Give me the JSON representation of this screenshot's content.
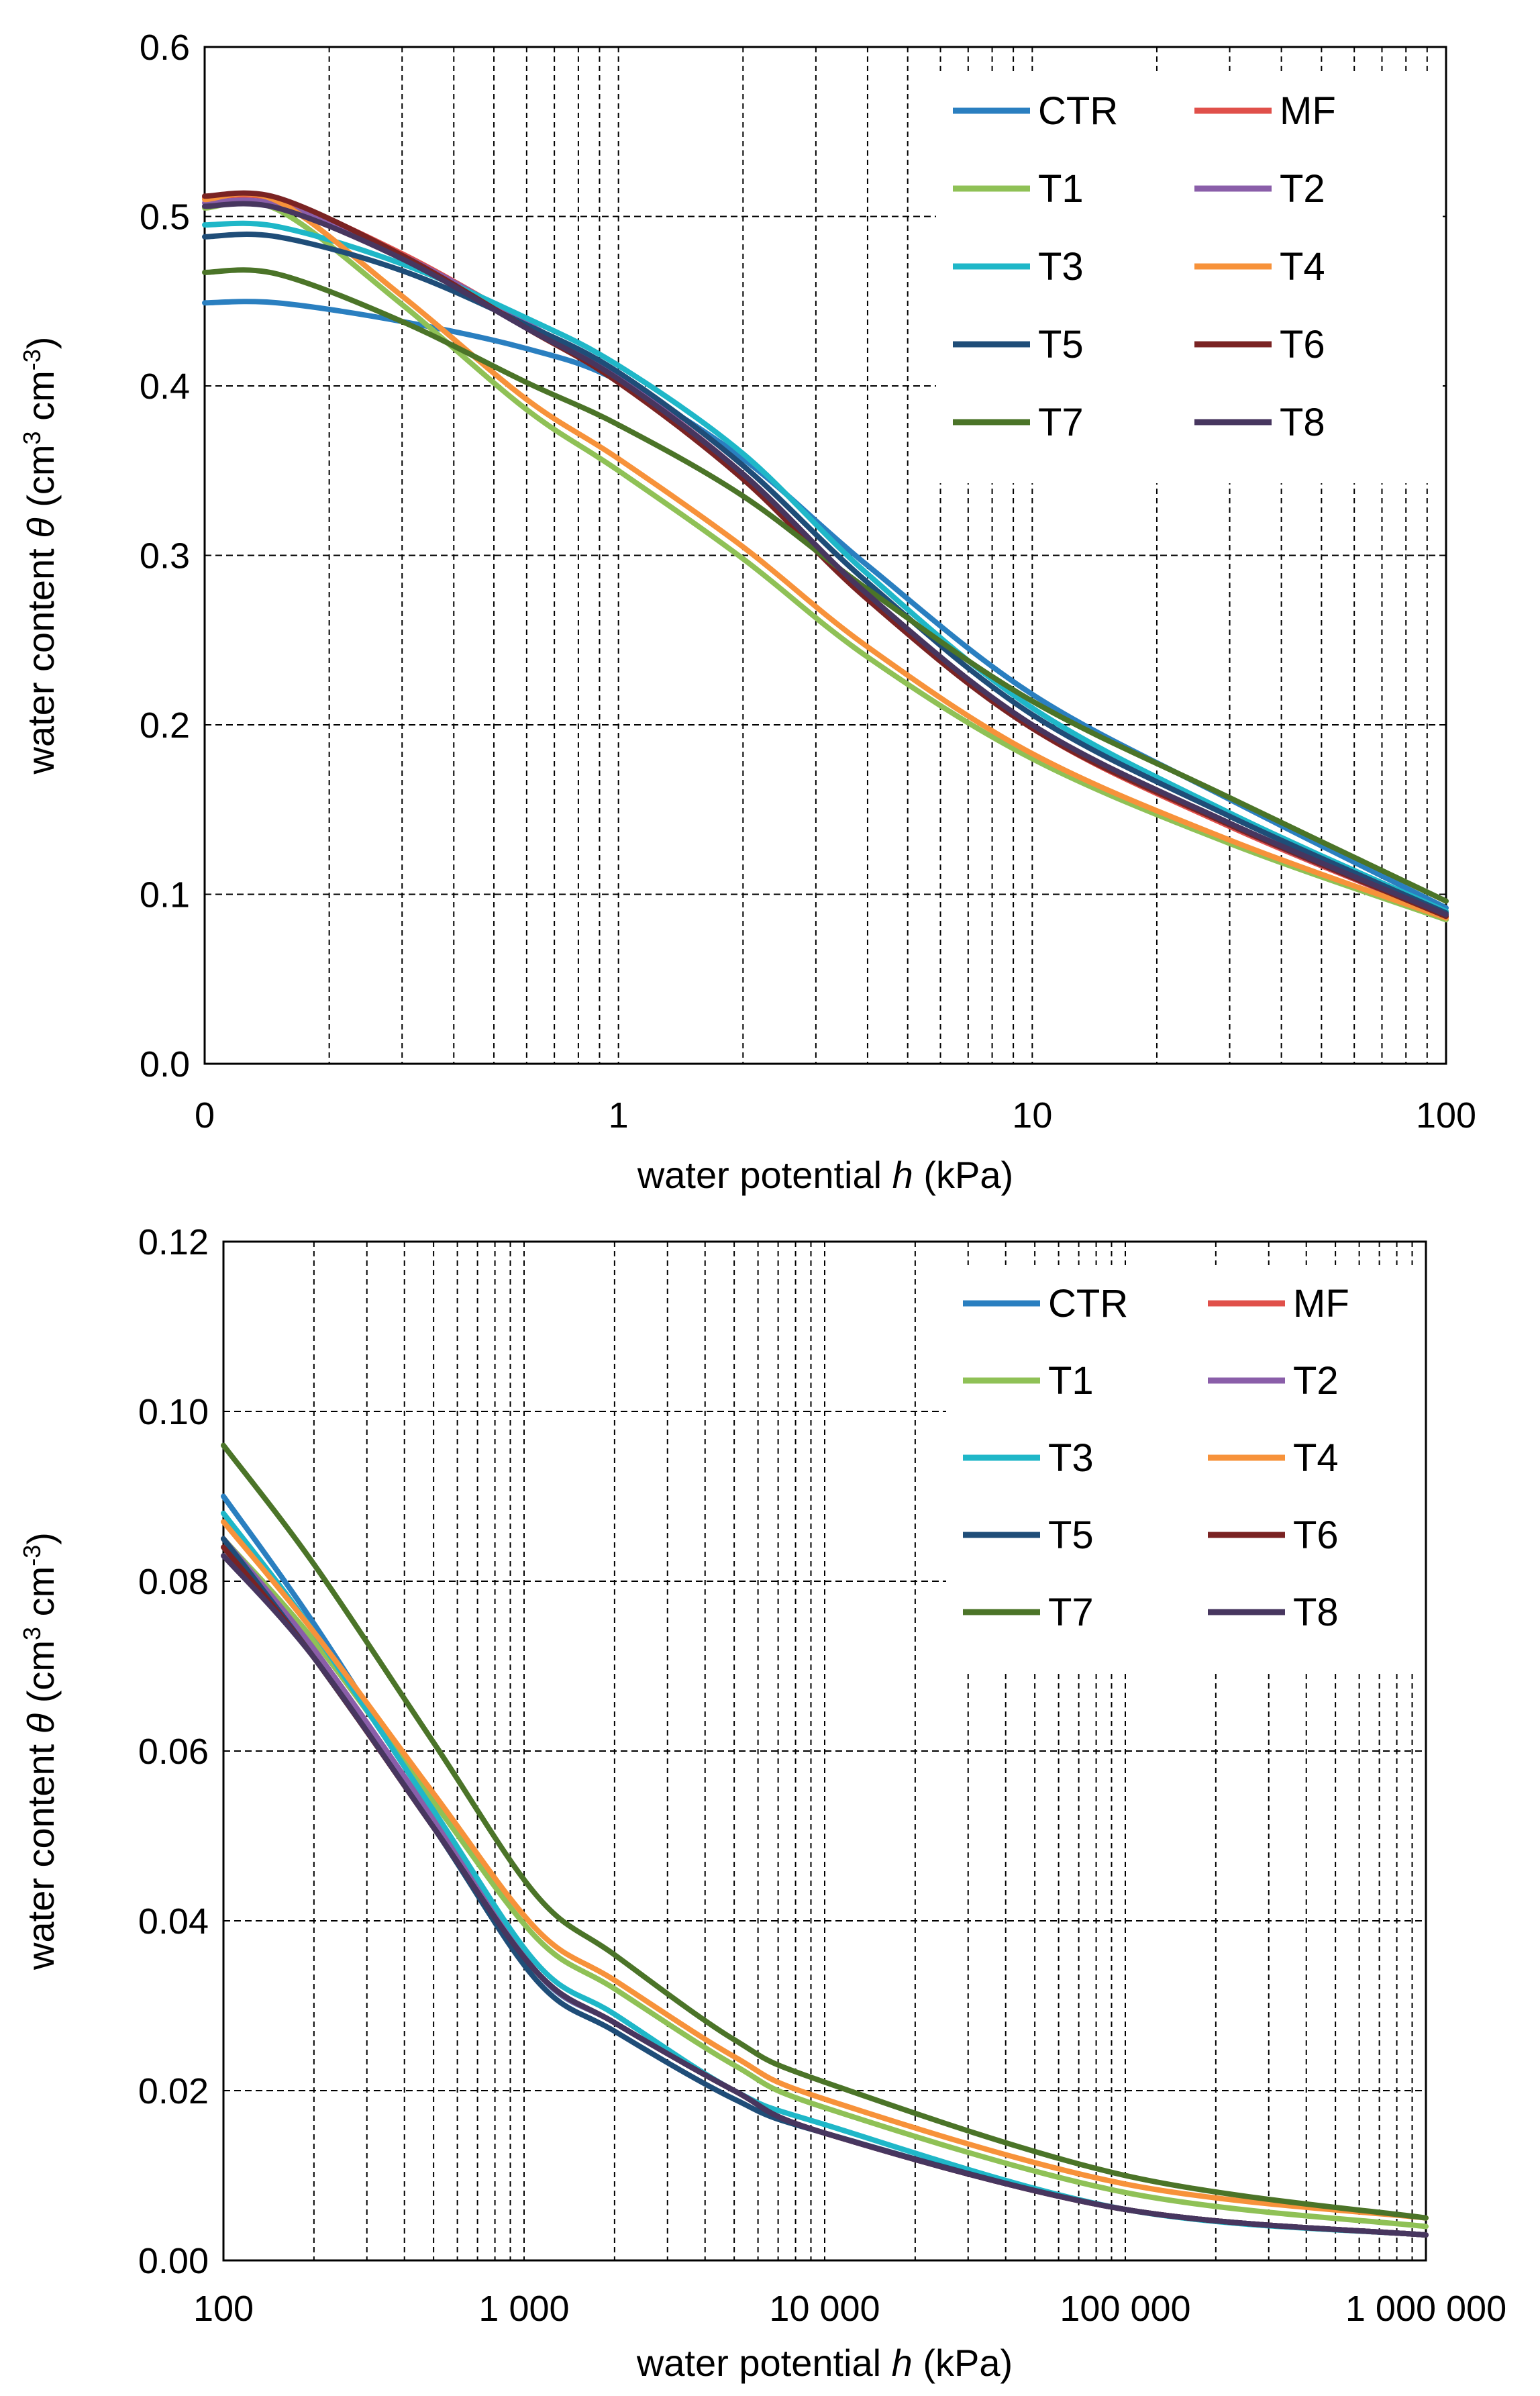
{
  "colors": {
    "CTR": "#2a7fc0",
    "MF": "#e0504a",
    "T1": "#8fc156",
    "T2": "#8a5ea9",
    "T3": "#1fb7c8",
    "T4": "#f7923a",
    "T5": "#1f4d78",
    "T6": "#7a2323",
    "T7": "#4b7428",
    "T8": "#47365f"
  },
  "chart_data": [
    {
      "type": "line",
      "id": "top",
      "xscale": "log",
      "xlabel": "water potential h (kPa)",
      "xlabel_parts": [
        "water potential ",
        "h",
        " (kPa)"
      ],
      "ylabel": "water content θ (cm3 cm-3)",
      "ylabel_parts": [
        "water content ",
        "θ",
        " (cm",
        "3",
        " cm",
        "-3",
        ")"
      ],
      "xlim": [
        0.1,
        100
      ],
      "ylim": [
        0,
        0.6
      ],
      "x_ticks": [
        {
          "v": 0.1,
          "label": "0"
        },
        {
          "v": 1,
          "label": "1"
        },
        {
          "v": 10,
          "label": "10"
        },
        {
          "v": 100,
          "label": "100"
        }
      ],
      "y_ticks": [
        {
          "v": 0,
          "label": "0.0"
        },
        {
          "v": 0.1,
          "label": "0.1"
        },
        {
          "v": 0.2,
          "label": "0.2"
        },
        {
          "v": 0.3,
          "label": "0.3"
        },
        {
          "v": 0.4,
          "label": "0.4"
        },
        {
          "v": 0.5,
          "label": "0.5"
        },
        {
          "v": 0.6,
          "label": "0.6"
        }
      ],
      "legend": [
        "CTR",
        "MF",
        "T1",
        "T2",
        "T3",
        "T4",
        "T5",
        "T6",
        "T7",
        "T8"
      ],
      "legend_position": "top-right",
      "series": [
        {
          "name": "CTR",
          "x": [
            0.1,
            0.15,
            0.3,
            0.6,
            1,
            2,
            4,
            10,
            30,
            100
          ],
          "y": [
            0.449,
            0.449,
            0.438,
            0.422,
            0.403,
            0.357,
            0.294,
            0.218,
            0.156,
            0.092
          ]
        },
        {
          "name": "MF",
          "x": [
            0.1,
            0.15,
            0.3,
            0.6,
            1,
            2,
            4,
            10,
            30,
            100
          ],
          "y": [
            0.511,
            0.51,
            0.478,
            0.437,
            0.405,
            0.348,
            0.276,
            0.198,
            0.14,
            0.087
          ]
        },
        {
          "name": "T1",
          "x": [
            0.1,
            0.15,
            0.3,
            0.6,
            1,
            2,
            4,
            10,
            30,
            100
          ],
          "y": [
            0.505,
            0.504,
            0.448,
            0.386,
            0.35,
            0.298,
            0.24,
            0.18,
            0.13,
            0.085
          ]
        },
        {
          "name": "T2",
          "x": [
            0.1,
            0.15,
            0.3,
            0.6,
            1,
            2,
            4,
            10,
            30,
            100
          ],
          "y": [
            0.508,
            0.507,
            0.477,
            0.437,
            0.405,
            0.348,
            0.277,
            0.199,
            0.141,
            0.087
          ]
        },
        {
          "name": "T3",
          "x": [
            0.1,
            0.15,
            0.3,
            0.6,
            1,
            2,
            4,
            10,
            30,
            100
          ],
          "y": [
            0.495,
            0.494,
            0.472,
            0.44,
            0.412,
            0.36,
            0.289,
            0.21,
            0.148,
            0.09
          ]
        },
        {
          "name": "T4",
          "x": [
            0.1,
            0.15,
            0.3,
            0.6,
            1,
            2,
            4,
            10,
            30,
            100
          ],
          "y": [
            0.51,
            0.509,
            0.453,
            0.392,
            0.357,
            0.305,
            0.246,
            0.183,
            0.132,
            0.086
          ]
        },
        {
          "name": "T5",
          "x": [
            0.1,
            0.15,
            0.3,
            0.6,
            1,
            2,
            4,
            10,
            30,
            100
          ],
          "y": [
            0.488,
            0.488,
            0.468,
            0.436,
            0.408,
            0.353,
            0.284,
            0.206,
            0.146,
            0.089
          ]
        },
        {
          "name": "T6",
          "x": [
            0.1,
            0.15,
            0.3,
            0.6,
            1,
            2,
            4,
            10,
            30,
            100
          ],
          "y": [
            0.512,
            0.511,
            0.477,
            0.434,
            0.402,
            0.345,
            0.274,
            0.198,
            0.141,
            0.087
          ]
        },
        {
          "name": "T7",
          "x": [
            0.1,
            0.15,
            0.3,
            0.6,
            1,
            2,
            4,
            10,
            30,
            100
          ],
          "y": [
            0.467,
            0.466,
            0.438,
            0.402,
            0.377,
            0.335,
            0.28,
            0.214,
            0.157,
            0.096
          ]
        },
        {
          "name": "T8",
          "x": [
            0.1,
            0.15,
            0.3,
            0.6,
            1,
            2,
            4,
            10,
            30,
            100
          ],
          "y": [
            0.506,
            0.505,
            0.475,
            0.434,
            0.404,
            0.348,
            0.277,
            0.2,
            0.142,
            0.088
          ]
        }
      ]
    },
    {
      "type": "line",
      "id": "bottom",
      "xscale": "log",
      "xlabel": "water potential h (kPa)",
      "xlabel_parts": [
        "water potential ",
        "h",
        " (kPa)"
      ],
      "ylabel": "water content θ (cm3 cm-3)",
      "ylabel_parts": [
        "water content ",
        "θ",
        " (cm",
        "3",
        " cm",
        "-3",
        ")"
      ],
      "xlim": [
        100,
        1000000
      ],
      "ylim": [
        0,
        0.12
      ],
      "x_ticks": [
        {
          "v": 100,
          "label": "100"
        },
        {
          "v": 1000,
          "label": "1 000"
        },
        {
          "v": 10000,
          "label": "10 000"
        },
        {
          "v": 100000,
          "label": "100 000"
        },
        {
          "v": 1000000,
          "label": "1 000 000"
        }
      ],
      "y_ticks": [
        {
          "v": 0,
          "label": "0.00"
        },
        {
          "v": 0.02,
          "label": "0.02"
        },
        {
          "v": 0.04,
          "label": "0.04"
        },
        {
          "v": 0.06,
          "label": "0.06"
        },
        {
          "v": 0.08,
          "label": "0.08"
        },
        {
          "v": 0.1,
          "label": "0.10"
        },
        {
          "v": 0.12,
          "label": "0.12"
        }
      ],
      "legend": [
        "CTR",
        "MF",
        "T1",
        "T2",
        "T3",
        "T4",
        "T5",
        "T6",
        "T7",
        "T8"
      ],
      "legend_position": "top-right",
      "series": [
        {
          "name": "CTR",
          "x": [
            100,
            200,
            500,
            1100,
            2000,
            5000,
            10000,
            100000,
            1000000
          ],
          "y": [
            0.09,
            0.075,
            0.053,
            0.034,
            0.028,
            0.02,
            0.015,
            0.006,
            0.003
          ]
        },
        {
          "name": "MF",
          "x": [
            100,
            200,
            500,
            1100,
            2000,
            5000,
            10000,
            100000,
            1000000
          ],
          "y": [
            0.085,
            0.072,
            0.052,
            0.034,
            0.028,
            0.02,
            0.015,
            0.006,
            0.003
          ]
        },
        {
          "name": "T1",
          "x": [
            100,
            200,
            500,
            1100,
            2000,
            5000,
            10000,
            100000,
            1000000
          ],
          "y": [
            0.085,
            0.073,
            0.054,
            0.038,
            0.032,
            0.023,
            0.018,
            0.008,
            0.004
          ]
        },
        {
          "name": "T2",
          "x": [
            100,
            200,
            500,
            1100,
            2000,
            5000,
            10000,
            100000,
            1000000
          ],
          "y": [
            0.085,
            0.072,
            0.052,
            0.034,
            0.028,
            0.02,
            0.015,
            0.006,
            0.003
          ]
        },
        {
          "name": "T3",
          "x": [
            100,
            200,
            500,
            1100,
            2000,
            5000,
            10000,
            100000,
            1000000
          ],
          "y": [
            0.088,
            0.074,
            0.053,
            0.035,
            0.029,
            0.02,
            0.016,
            0.006,
            0.003
          ]
        },
        {
          "name": "T4",
          "x": [
            100,
            200,
            500,
            1100,
            2000,
            5000,
            10000,
            100000,
            1000000
          ],
          "y": [
            0.087,
            0.074,
            0.055,
            0.039,
            0.033,
            0.024,
            0.019,
            0.009,
            0.005
          ]
        },
        {
          "name": "T5",
          "x": [
            100,
            200,
            500,
            1100,
            2000,
            5000,
            10000,
            100000,
            1000000
          ],
          "y": [
            0.085,
            0.071,
            0.051,
            0.033,
            0.027,
            0.019,
            0.015,
            0.006,
            0.003
          ]
        },
        {
          "name": "T6",
          "x": [
            100,
            200,
            500,
            1100,
            2000,
            5000,
            10000,
            100000,
            1000000
          ],
          "y": [
            0.084,
            0.071,
            0.051,
            0.034,
            0.028,
            0.02,
            0.015,
            0.006,
            0.003
          ]
        },
        {
          "name": "T7",
          "x": [
            100,
            200,
            500,
            1100,
            2000,
            5000,
            10000,
            100000,
            1000000
          ],
          "y": [
            0.096,
            0.082,
            0.061,
            0.043,
            0.036,
            0.026,
            0.021,
            0.01,
            0.005
          ]
        },
        {
          "name": "T8",
          "x": [
            100,
            200,
            500,
            1100,
            2000,
            5000,
            10000,
            100000,
            1000000
          ],
          "y": [
            0.083,
            0.071,
            0.051,
            0.034,
            0.028,
            0.02,
            0.015,
            0.006,
            0.003
          ]
        }
      ]
    }
  ]
}
